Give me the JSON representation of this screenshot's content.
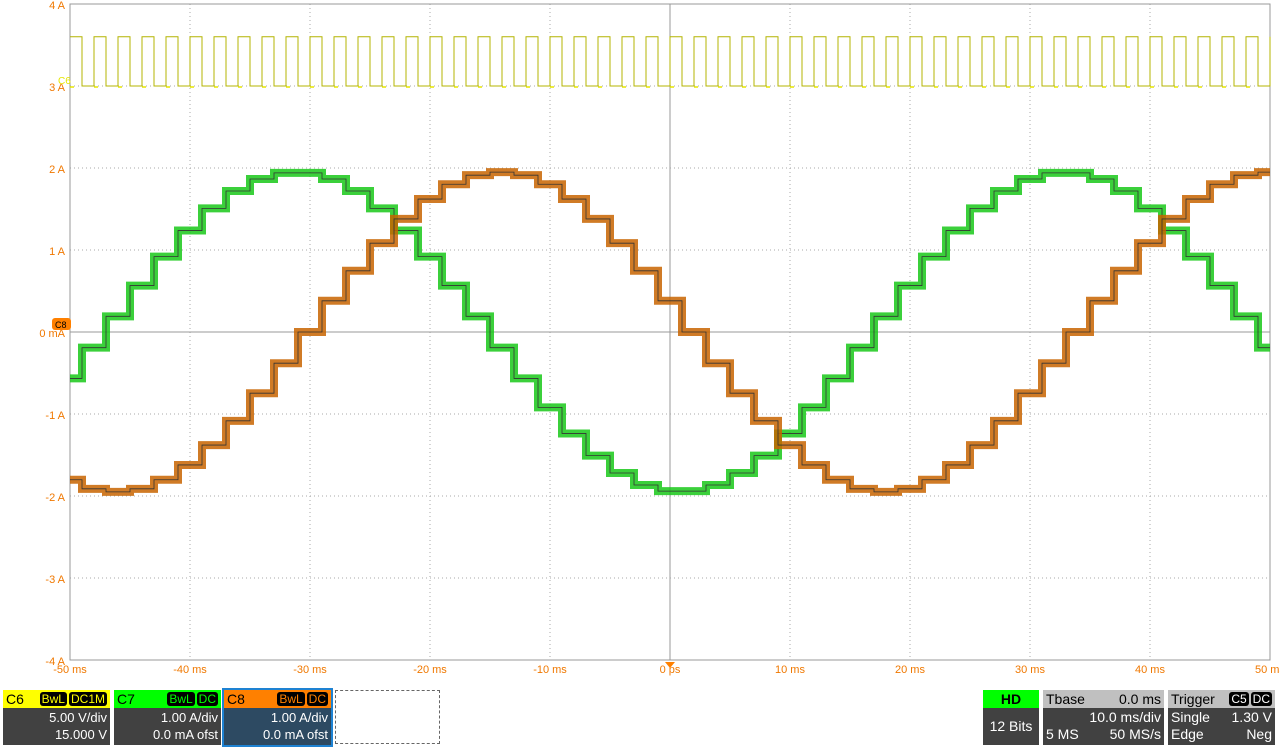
{
  "chart_data": {
    "type": "line",
    "xlabel": "",
    "ylabel": "",
    "xlim": [
      -50,
      50
    ],
    "ylim": [
      -4,
      4
    ],
    "x_ticks": [
      "-50 ms",
      "-40 ms",
      "-30 ms",
      "-20 ms",
      "-10 ms",
      "0 ps",
      "10 ms",
      "20 ms",
      "30 ms",
      "40 ms",
      "50 ms"
    ],
    "y_ticks": [
      "4 A",
      "3 A",
      "2 A",
      "1 A",
      "0 mA",
      "-1 A",
      "-2 A",
      "-3 A",
      "-4 A"
    ],
    "grid": true,
    "series": [
      {
        "name": "C6",
        "color": "#e6e600",
        "kind": "square",
        "period_ms": 2,
        "duty": 0.5,
        "low_div": 3.0,
        "high_div": 3.6
      },
      {
        "name": "C7",
        "color": "#19c819",
        "kind": "stepped-sine",
        "amplitude_A": 1.95,
        "period_ms": 64,
        "zero_up_crossing_ms": 17,
        "step_ms": 2
      },
      {
        "name": "C8",
        "color": "#c86400",
        "kind": "stepped-sine",
        "amplitude_A": 1.95,
        "period_ms": 64,
        "zero_up_crossing_ms": -30,
        "step_ms": 2
      }
    ],
    "markers": {
      "c6": "C6",
      "c8": "C8"
    }
  },
  "channels": [
    {
      "name": "C6",
      "tags": [
        "BwL",
        "DC1M"
      ],
      "scale": "5.00 V/div",
      "offset": "15.000 V",
      "color": "#ffff00"
    },
    {
      "name": "C7",
      "tags": [
        "BwL",
        "DC"
      ],
      "scale": "1.00 A/div",
      "offset": "0.0 mA ofst",
      "color": "#00ff00"
    },
    {
      "name": "C8",
      "tags": [
        "BwL",
        "DC"
      ],
      "scale": "1.00 A/div",
      "offset": "0.0 mA ofst",
      "color": "#ff8000"
    }
  ],
  "acq": {
    "mode": "HD",
    "bits": "12 Bits"
  },
  "tbase": {
    "label": "Tbase",
    "pos": "0.0 ms",
    "scale": "10.0 ms/div",
    "points": "5 MS",
    "rate": "50 MS/s"
  },
  "trigger": {
    "label": "Trigger",
    "source": "C5",
    "coupling": "DC",
    "mode": "Single",
    "level": "1.30 V",
    "type": "Edge",
    "slope": "Neg"
  }
}
